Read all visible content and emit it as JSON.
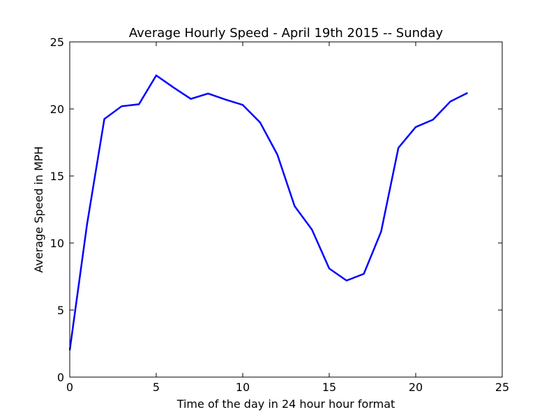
{
  "chart_data": {
    "type": "line",
    "title": "Average Hourly Speed - April 19th 2015 -- Sunday",
    "xlabel": "Time of the day in 24 hour hour format",
    "ylabel": "Average Speed in MPH",
    "xlim": [
      0,
      25
    ],
    "ylim": [
      0,
      25
    ],
    "xticks": [
      0,
      5,
      10,
      15,
      20,
      25
    ],
    "yticks": [
      0,
      5,
      10,
      15,
      20,
      25
    ],
    "grid": false,
    "legend": "none",
    "series": [
      {
        "color": "#0000ff",
        "x": [
          0,
          1,
          2,
          3,
          4,
          5,
          6,
          7,
          8,
          9,
          10,
          11,
          12,
          13,
          14,
          15,
          16,
          17,
          18,
          19,
          20,
          21,
          22,
          23
        ],
        "y": [
          2.0,
          11.4,
          19.25,
          20.2,
          20.35,
          22.5,
          21.6,
          20.75,
          21.15,
          20.7,
          20.3,
          19.0,
          16.6,
          12.75,
          11.0,
          8.1,
          7.2,
          7.7,
          10.85,
          17.1,
          18.65,
          19.2,
          20.55,
          21.2
        ]
      }
    ]
  }
}
